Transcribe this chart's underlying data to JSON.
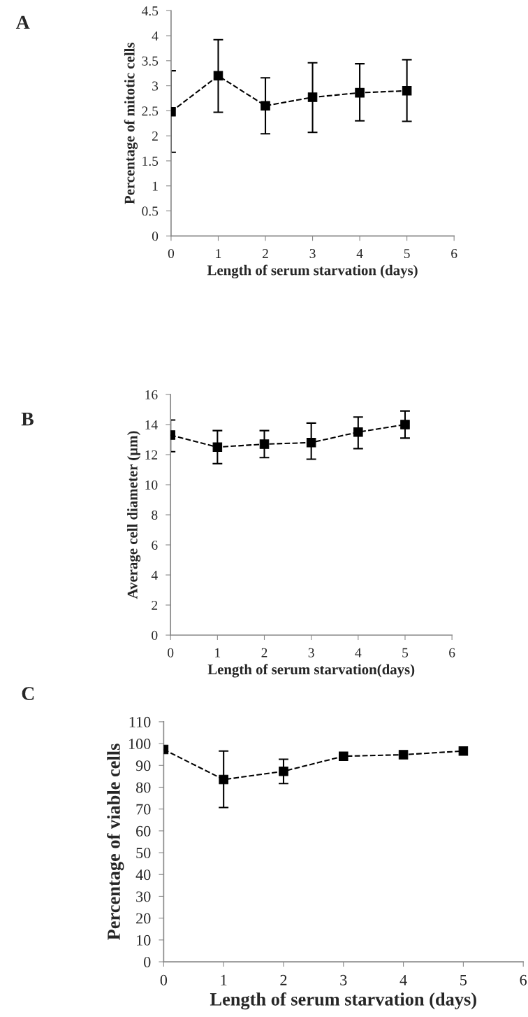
{
  "chart_data": [
    {
      "type": "line",
      "annotations": [
        "A"
      ],
      "xlabel": "Length of serum starvation (days)",
      "ylabel": "Percentage of mitotic cells",
      "x": [
        0,
        1,
        2,
        3,
        4,
        5
      ],
      "series": [
        {
          "color": "#000000",
          "values": [
            2.48,
            3.2,
            2.6,
            2.77,
            2.86,
            2.9
          ],
          "errors": [
            [
              1.67,
              3.3
            ],
            [
              2.47,
              3.92
            ],
            [
              2.04,
              3.16
            ],
            [
              2.07,
              3.46
            ],
            [
              2.3,
              3.44
            ],
            [
              2.29,
              3.52
            ]
          ]
        }
      ],
      "xlim": [
        0,
        6
      ],
      "xticks": [
        0,
        1,
        2,
        3,
        4,
        5,
        6
      ],
      "ylim": [
        0,
        4.5
      ],
      "yticks": [
        0,
        0.5,
        1,
        1.5,
        2,
        2.5,
        3,
        3.5,
        4,
        4.5
      ],
      "marker": "square",
      "line_style": "dashed",
      "grid": false,
      "legend": false
    },
    {
      "type": "line",
      "annotations": [
        "B"
      ],
      "xlabel": "Length of serum starvation(days)",
      "ylabel": "Average cell diameter (µm)",
      "x": [
        0,
        1,
        2,
        3,
        4,
        5
      ],
      "series": [
        {
          "color": "#000000",
          "values": [
            13.3,
            12.5,
            12.7,
            12.8,
            13.5,
            14.0
          ],
          "errors": [
            [
              12.2,
              14.3
            ],
            [
              11.4,
              13.6
            ],
            [
              11.8,
              13.6
            ],
            [
              11.7,
              14.1
            ],
            [
              12.4,
              14.5
            ],
            [
              13.1,
              14.9
            ]
          ]
        }
      ],
      "xlim": [
        0,
        6
      ],
      "xticks": [
        0,
        1,
        2,
        3,
        4,
        5,
        6
      ],
      "ylim": [
        0,
        16
      ],
      "yticks": [
        0,
        2,
        4,
        6,
        8,
        10,
        12,
        14,
        16
      ],
      "marker": "square",
      "line_style": "dashed",
      "grid": false,
      "legend": false
    },
    {
      "type": "line",
      "annotations": [
        "C"
      ],
      "xlabel": "Length of serum starvation (days)",
      "ylabel": "Percentage of viable cells",
      "x": [
        0,
        1,
        2,
        3,
        4,
        5
      ],
      "series": [
        {
          "color": "#000000",
          "values": [
            97.3,
            83.5,
            87.3,
            94.2,
            94.9,
            96.6
          ],
          "errors": [
            null,
            [
              70.7,
              96.6
            ],
            [
              81.7,
              92.8
            ],
            null,
            null,
            null
          ]
        }
      ],
      "xlim": [
        0,
        6
      ],
      "xticks": [
        0,
        1,
        2,
        3,
        4,
        5,
        6
      ],
      "ylim": [
        0,
        110
      ],
      "yticks": [
        0,
        10,
        20,
        30,
        40,
        50,
        60,
        70,
        80,
        90,
        100,
        110
      ],
      "marker": "square",
      "line_style": "dashed",
      "grid": false,
      "legend": false
    }
  ]
}
